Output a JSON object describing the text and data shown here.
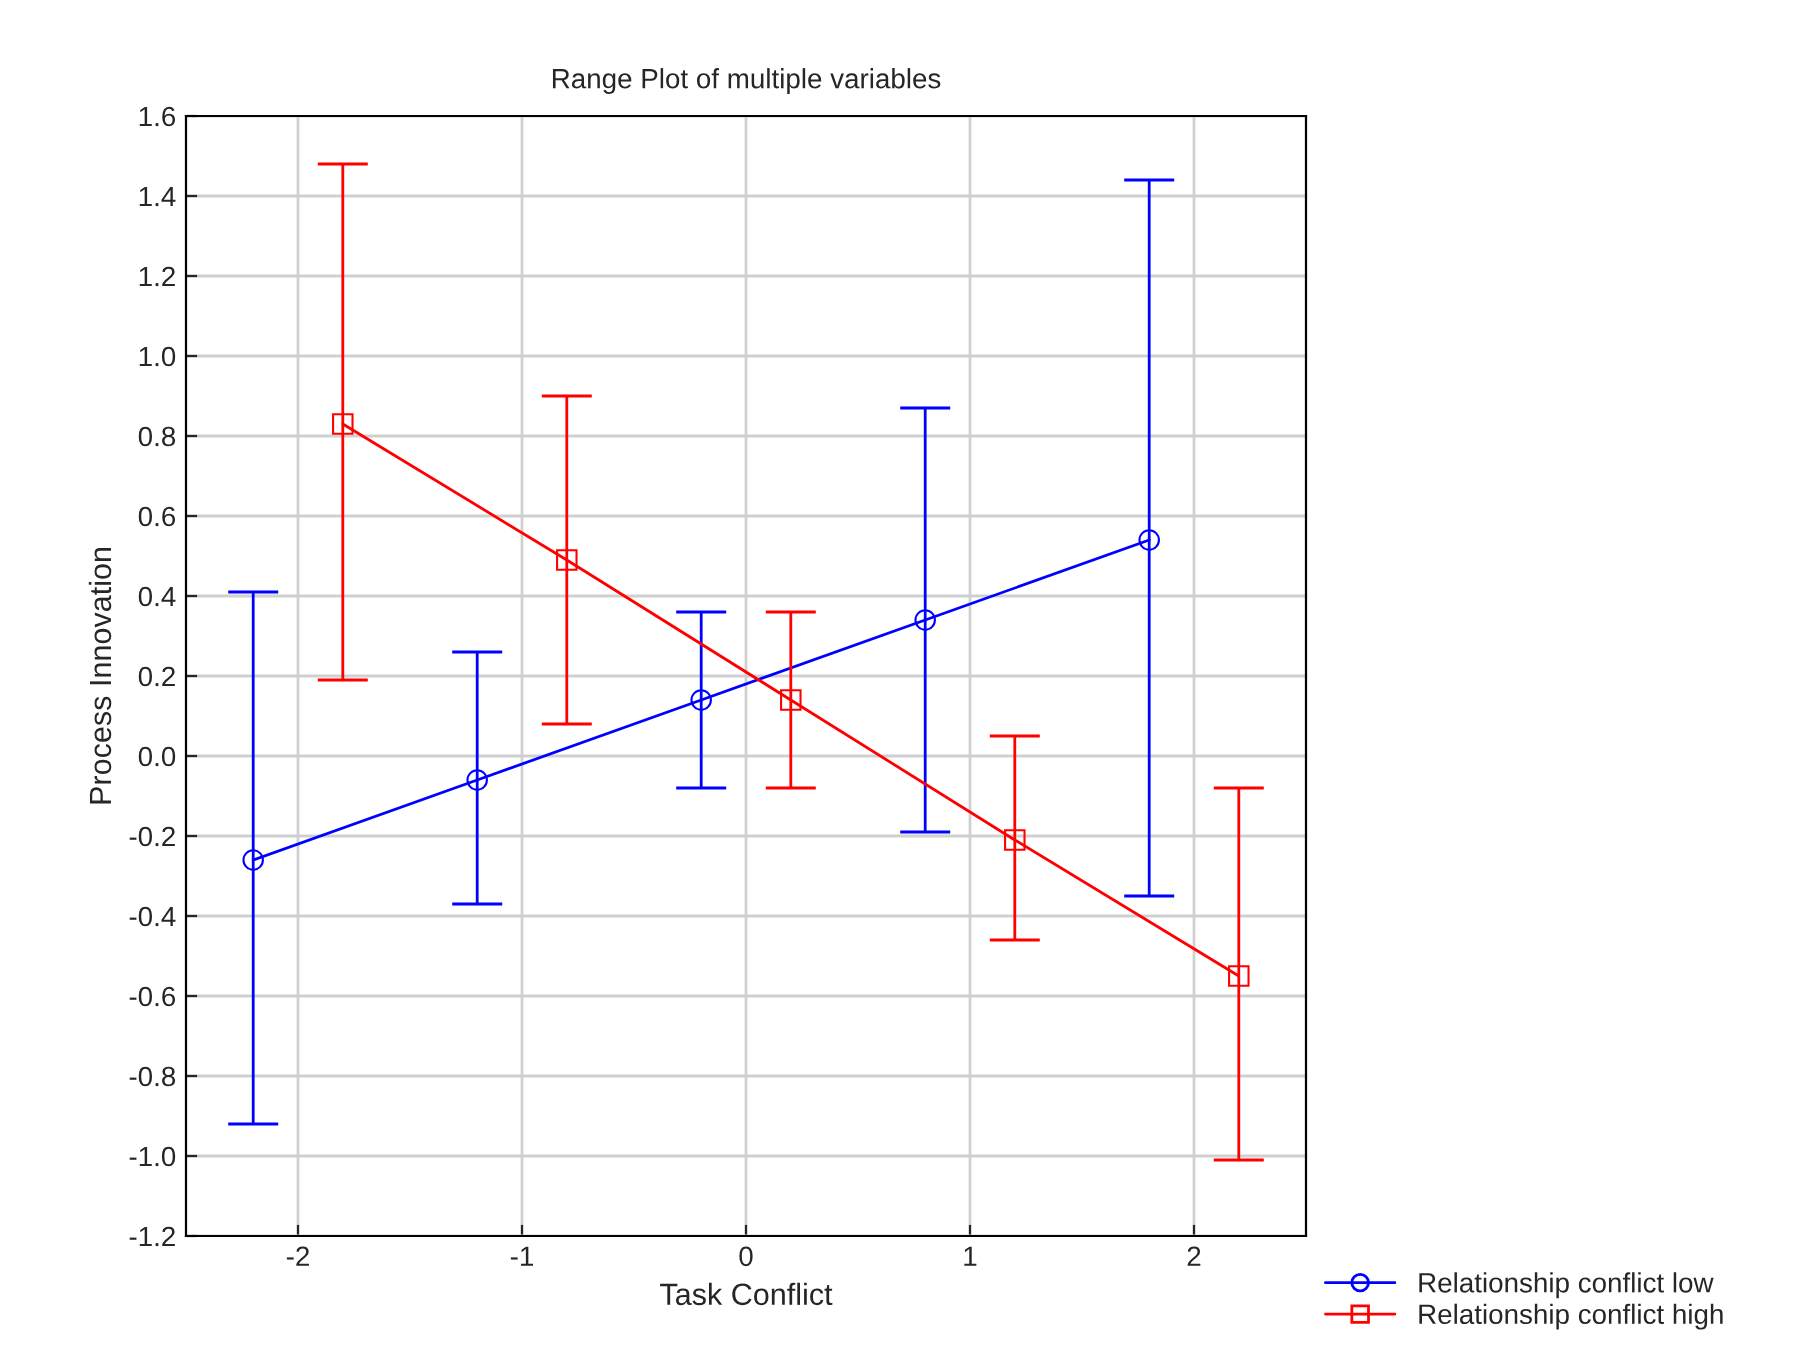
{
  "chart_data": {
    "type": "line",
    "title": "Range Plot of multiple variables",
    "xlabel": "Task Conflict",
    "ylabel": "Process Innovation",
    "xlim": [
      -2.5,
      2.5
    ],
    "xticks": [
      -2,
      -1,
      0,
      1,
      2
    ],
    "ylim": [
      -1.2,
      1.6
    ],
    "yticks": [
      -1.2,
      {
        "value": -1,
        "label": "-1.0"
      },
      -0.8,
      -0.6,
      -0.4,
      -0.2,
      {
        "value": 0,
        "label": "0.0"
      },
      0.2,
      0.4,
      0.6,
      0.8,
      {
        "value": 1,
        "label": "1.0"
      },
      1.2,
      1.4,
      1.6
    ],
    "grid": true,
    "legend": "bottom right",
    "line_style": "solid",
    "series": [
      {
        "name": "Relationship conflict low",
        "color": "#0000ff",
        "marker": "circle",
        "x": [
          -2.2,
          -1.2,
          -0.2,
          0.8,
          1.8
        ],
        "values": [
          -0.26,
          -0.06,
          0.14,
          0.34,
          0.54
        ],
        "errors": [
          [
            -0.92,
            0.41
          ],
          [
            -0.37,
            0.26
          ],
          [
            -0.08,
            0.36
          ],
          [
            -0.19,
            0.87
          ],
          [
            -0.35,
            1.44
          ]
        ]
      },
      {
        "name": "Relationship conflict high",
        "color": "#ff0000",
        "marker": "square",
        "x": [
          -1.8,
          -0.8,
          0.2,
          1.2,
          2.2
        ],
        "values": [
          0.83,
          0.49,
          0.14,
          -0.21,
          -0.55
        ],
        "errors": [
          [
            0.19,
            1.48
          ],
          [
            0.08,
            0.9
          ],
          [
            -0.08,
            0.36
          ],
          [
            -0.46,
            0.05
          ],
          [
            -1.01,
            -0.08
          ]
        ]
      }
    ]
  }
}
